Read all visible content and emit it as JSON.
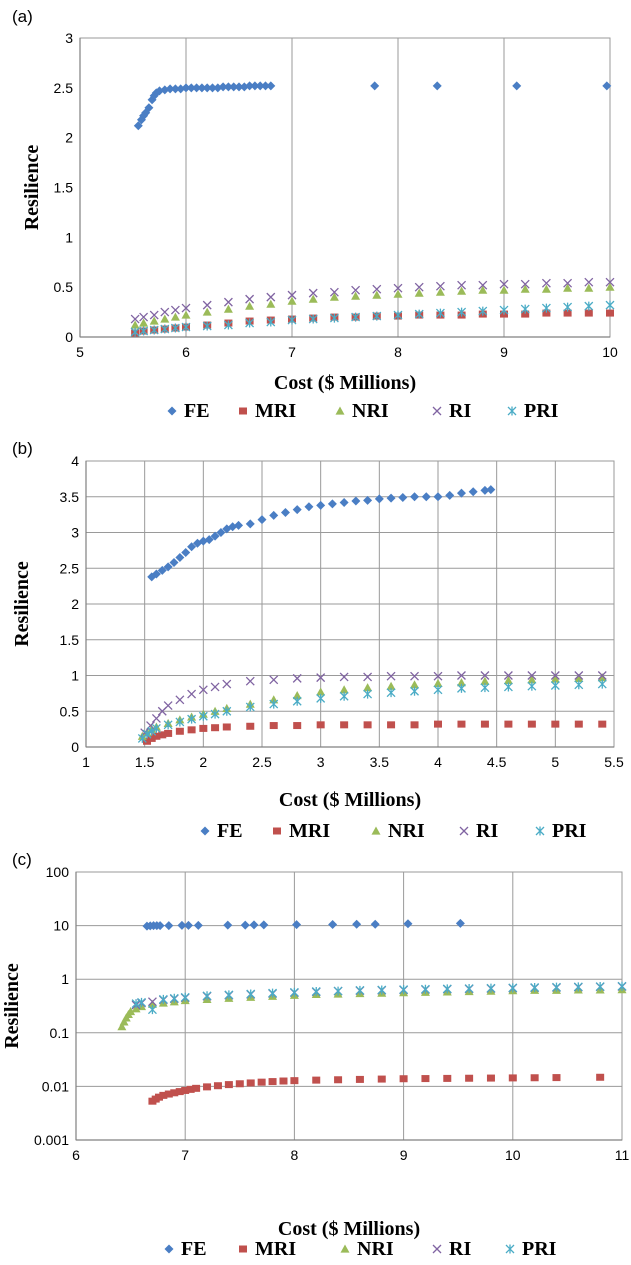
{
  "chart_data": [
    {
      "type": "scatter",
      "panel_label": "(a)",
      "xlabel": "Cost ($ Millions)",
      "ylabel": "Resilience",
      "xlim": [
        5,
        10
      ],
      "ylim": [
        0,
        3
      ],
      "xticks": [
        "5",
        "6",
        "7",
        "8",
        "9",
        "10"
      ],
      "yticks": [
        "0",
        "0.5",
        "1",
        "1.5",
        "2",
        "2.5",
        "3"
      ],
      "grid": "vertical",
      "legend_position": "bottom",
      "series": [
        {
          "name": "FE",
          "color": "#4A7EC4",
          "marker": "diamond",
          "x": [
            5.55,
            5.58,
            5.6,
            5.62,
            5.65,
            5.68,
            5.7,
            5.72,
            5.75,
            5.8,
            5.85,
            5.9,
            5.95,
            6.0,
            6.05,
            6.1,
            6.15,
            6.2,
            6.25,
            6.3,
            6.35,
            6.4,
            6.45,
            6.5,
            6.55,
            6.6,
            6.65,
            6.7,
            6.75,
            6.8,
            7.78,
            8.37,
            9.12,
            9.97
          ],
          "y": [
            2.12,
            2.18,
            2.22,
            2.25,
            2.3,
            2.38,
            2.42,
            2.45,
            2.47,
            2.48,
            2.49,
            2.49,
            2.49,
            2.5,
            2.5,
            2.5,
            2.5,
            2.5,
            2.5,
            2.5,
            2.51,
            2.51,
            2.51,
            2.51,
            2.51,
            2.52,
            2.52,
            2.52,
            2.52,
            2.52,
            2.52,
            2.52,
            2.52,
            2.52
          ]
        },
        {
          "name": "MRI",
          "color": "#C0504D",
          "marker": "square",
          "x": [
            5.52,
            5.6,
            5.7,
            5.8,
            5.9,
            6.0,
            6.2,
            6.4,
            6.6,
            6.8,
            7.0,
            7.2,
            7.4,
            7.6,
            7.8,
            8.0,
            8.2,
            8.4,
            8.6,
            8.8,
            9.0,
            9.2,
            9.4,
            9.6,
            9.8,
            10.0
          ],
          "y": [
            0.04,
            0.06,
            0.07,
            0.08,
            0.09,
            0.1,
            0.12,
            0.14,
            0.16,
            0.17,
            0.18,
            0.19,
            0.2,
            0.2,
            0.21,
            0.21,
            0.22,
            0.22,
            0.22,
            0.23,
            0.23,
            0.23,
            0.24,
            0.24,
            0.24,
            0.24
          ]
        },
        {
          "name": "NRI",
          "color": "#9BBB59",
          "marker": "triangle",
          "x": [
            5.52,
            5.6,
            5.7,
            5.8,
            5.9,
            6.0,
            6.2,
            6.4,
            6.6,
            6.8,
            7.0,
            7.2,
            7.4,
            7.6,
            7.8,
            8.0,
            8.2,
            8.4,
            8.6,
            8.8,
            9.0,
            9.2,
            9.4,
            9.6,
            9.8,
            10.0
          ],
          "y": [
            0.12,
            0.14,
            0.16,
            0.18,
            0.2,
            0.22,
            0.25,
            0.28,
            0.31,
            0.33,
            0.36,
            0.38,
            0.4,
            0.41,
            0.42,
            0.43,
            0.44,
            0.45,
            0.46,
            0.47,
            0.47,
            0.48,
            0.48,
            0.49,
            0.49,
            0.5
          ]
        },
        {
          "name": "RI",
          "color": "#8064A2",
          "marker": "x",
          "x": [
            5.52,
            5.6,
            5.7,
            5.8,
            5.9,
            6.0,
            6.2,
            6.4,
            6.6,
            6.8,
            7.0,
            7.2,
            7.4,
            7.6,
            7.8,
            8.0,
            8.2,
            8.4,
            8.6,
            8.8,
            9.0,
            9.2,
            9.4,
            9.6,
            9.8,
            10.0
          ],
          "y": [
            0.18,
            0.2,
            0.22,
            0.25,
            0.27,
            0.29,
            0.32,
            0.35,
            0.38,
            0.4,
            0.42,
            0.44,
            0.45,
            0.47,
            0.48,
            0.49,
            0.5,
            0.51,
            0.52,
            0.52,
            0.53,
            0.53,
            0.54,
            0.54,
            0.55,
            0.55
          ]
        },
        {
          "name": "PRI",
          "color": "#4BACC6",
          "marker": "asterisk",
          "x": [
            5.52,
            5.6,
            5.7,
            5.8,
            5.9,
            6.0,
            6.2,
            6.4,
            6.6,
            6.8,
            7.0,
            7.2,
            7.4,
            7.6,
            7.8,
            8.0,
            8.2,
            8.4,
            8.6,
            8.8,
            9.0,
            9.2,
            9.4,
            9.6,
            9.8,
            10.0
          ],
          "y": [
            0.05,
            0.06,
            0.07,
            0.08,
            0.09,
            0.1,
            0.11,
            0.12,
            0.14,
            0.15,
            0.17,
            0.18,
            0.19,
            0.2,
            0.21,
            0.22,
            0.23,
            0.24,
            0.25,
            0.26,
            0.27,
            0.28,
            0.29,
            0.3,
            0.31,
            0.32
          ]
        }
      ]
    },
    {
      "type": "scatter",
      "panel_label": "(b)",
      "xlabel": "Cost ($ Millions)",
      "ylabel": "Resilience",
      "xlim": [
        1,
        5.5
      ],
      "ylim": [
        0,
        4
      ],
      "xticks": [
        "1",
        "1.5",
        "2",
        "2.5",
        "3",
        "3.5",
        "4",
        "4.5",
        "5",
        "5.5"
      ],
      "yticks": [
        "0",
        "0.5",
        "1",
        "1.5",
        "2",
        "2.5",
        "3",
        "3.5",
        "4"
      ],
      "grid": "both",
      "legend_position": "bottom",
      "series": [
        {
          "name": "FE",
          "color": "#4A7EC4",
          "marker": "diamond",
          "x": [
            1.56,
            1.6,
            1.65,
            1.7,
            1.75,
            1.8,
            1.85,
            1.9,
            1.95,
            2.0,
            2.05,
            2.1,
            2.15,
            2.2,
            2.25,
            2.3,
            2.4,
            2.5,
            2.6,
            2.7,
            2.8,
            2.9,
            3.0,
            3.1,
            3.2,
            3.3,
            3.4,
            3.5,
            3.6,
            3.7,
            3.8,
            3.9,
            4.0,
            4.1,
            4.2,
            4.3,
            4.4,
            4.45
          ],
          "y": [
            2.38,
            2.42,
            2.47,
            2.52,
            2.58,
            2.65,
            2.72,
            2.8,
            2.85,
            2.88,
            2.9,
            2.95,
            3.0,
            3.05,
            3.08,
            3.1,
            3.12,
            3.18,
            3.24,
            3.28,
            3.32,
            3.36,
            3.38,
            3.4,
            3.42,
            3.44,
            3.45,
            3.47,
            3.48,
            3.49,
            3.5,
            3.5,
            3.5,
            3.52,
            3.55,
            3.57,
            3.59,
            3.6
          ]
        },
        {
          "name": "MRI",
          "color": "#C0504D",
          "marker": "square",
          "x": [
            1.52,
            1.56,
            1.6,
            1.65,
            1.7,
            1.8,
            1.9,
            2.0,
            2.1,
            2.2,
            2.4,
            2.6,
            2.8,
            3.0,
            3.2,
            3.4,
            3.6,
            3.8,
            4.0,
            4.2,
            4.4,
            4.6,
            4.8,
            5.0,
            5.2,
            5.4
          ],
          "y": [
            0.08,
            0.12,
            0.15,
            0.17,
            0.19,
            0.22,
            0.24,
            0.26,
            0.27,
            0.28,
            0.29,
            0.3,
            0.3,
            0.31,
            0.31,
            0.31,
            0.31,
            0.31,
            0.32,
            0.32,
            0.32,
            0.32,
            0.32,
            0.32,
            0.32,
            0.32
          ]
        },
        {
          "name": "NRI",
          "color": "#9BBB59",
          "marker": "triangle",
          "x": [
            1.48,
            1.52,
            1.56,
            1.6,
            1.7,
            1.8,
            1.9,
            2.0,
            2.1,
            2.2,
            2.4,
            2.6,
            2.8,
            3.0,
            3.2,
            3.4,
            3.6,
            3.8,
            4.0,
            4.2,
            4.4,
            4.6,
            4.8,
            5.0,
            5.2,
            5.4
          ],
          "y": [
            0.15,
            0.2,
            0.25,
            0.28,
            0.33,
            0.38,
            0.42,
            0.46,
            0.5,
            0.54,
            0.6,
            0.66,
            0.72,
            0.77,
            0.8,
            0.83,
            0.85,
            0.87,
            0.89,
            0.9,
            0.92,
            0.93,
            0.94,
            0.95,
            0.96,
            0.97
          ]
        },
        {
          "name": "RI",
          "color": "#8064A2",
          "marker": "x",
          "x": [
            1.5,
            1.55,
            1.6,
            1.65,
            1.7,
            1.8,
            1.9,
            2.0,
            2.1,
            2.2,
            2.4,
            2.6,
            2.8,
            3.0,
            3.2,
            3.4,
            3.6,
            3.8,
            4.0,
            4.2,
            4.4,
            4.6,
            4.8,
            5.0,
            5.2,
            5.4
          ],
          "y": [
            0.2,
            0.3,
            0.4,
            0.5,
            0.58,
            0.66,
            0.74,
            0.8,
            0.84,
            0.88,
            0.92,
            0.94,
            0.96,
            0.97,
            0.98,
            0.98,
            0.99,
            0.99,
            0.99,
            1.0,
            1.0,
            1.0,
            1.0,
            1.0,
            1.0,
            1.0
          ]
        },
        {
          "name": "PRI",
          "color": "#4BACC6",
          "marker": "asterisk",
          "x": [
            1.48,
            1.52,
            1.56,
            1.6,
            1.7,
            1.8,
            1.9,
            2.0,
            2.1,
            2.2,
            2.4,
            2.6,
            2.8,
            3.0,
            3.2,
            3.4,
            3.6,
            3.8,
            4.0,
            4.2,
            4.4,
            4.6,
            4.8,
            5.0,
            5.2,
            5.4
          ],
          "y": [
            0.12,
            0.18,
            0.22,
            0.26,
            0.31,
            0.35,
            0.39,
            0.43,
            0.46,
            0.5,
            0.56,
            0.6,
            0.64,
            0.68,
            0.71,
            0.74,
            0.76,
            0.78,
            0.8,
            0.82,
            0.83,
            0.84,
            0.85,
            0.86,
            0.87,
            0.88
          ]
        }
      ]
    },
    {
      "type": "scatter",
      "panel_label": "(c)",
      "xlabel": "Cost ($ Millions)",
      "ylabel": "Resilience",
      "xlim": [
        6,
        11
      ],
      "ylim": [
        0.001,
        100
      ],
      "yscale": "log",
      "xticks": [
        "6",
        "7",
        "8",
        "9",
        "10",
        "11"
      ],
      "yticks": [
        "0.001",
        "0.01",
        "0.1",
        "1",
        "10",
        "100"
      ],
      "grid": "both",
      "legend_position": "bottom",
      "series": [
        {
          "name": "FE",
          "color": "#4A7EC4",
          "marker": "diamond",
          "x": [
            6.65,
            6.68,
            6.71,
            6.74,
            6.77,
            6.85,
            6.97,
            7.03,
            7.12,
            7.39,
            7.55,
            7.63,
            7.72,
            8.02,
            8.35,
            8.57,
            8.74,
            9.04,
            9.52
          ],
          "y": [
            9.8,
            9.9,
            10.0,
            10.0,
            10.0,
            10.0,
            10.1,
            10.1,
            10.1,
            10.2,
            10.2,
            10.3,
            10.3,
            10.4,
            10.5,
            10.6,
            10.6,
            10.8,
            11.0
          ]
        },
        {
          "name": "MRI",
          "color": "#C0504D",
          "marker": "square",
          "x": [
            6.7,
            6.73,
            6.76,
            6.8,
            6.85,
            6.9,
            6.95,
            7.0,
            7.05,
            7.1,
            7.2,
            7.3,
            7.4,
            7.5,
            7.6,
            7.7,
            7.8,
            7.9,
            8.0,
            8.2,
            8.4,
            8.6,
            8.8,
            9.0,
            9.2,
            9.4,
            9.6,
            9.8,
            10.0,
            10.2,
            10.4,
            10.8
          ],
          "y": [
            0.0053,
            0.0058,
            0.0063,
            0.0068,
            0.0072,
            0.0076,
            0.008,
            0.0084,
            0.0088,
            0.0092,
            0.0098,
            0.0103,
            0.0108,
            0.0112,
            0.0116,
            0.012,
            0.0123,
            0.0126,
            0.0128,
            0.0131,
            0.0133,
            0.0135,
            0.0137,
            0.0139,
            0.014,
            0.0141,
            0.0142,
            0.0143,
            0.0144,
            0.0145,
            0.0146,
            0.0148
          ]
        },
        {
          "name": "NRI",
          "color": "#9BBB59",
          "marker": "triangle",
          "x": [
            6.42,
            6.44,
            6.46,
            6.48,
            6.5,
            6.55,
            6.6,
            6.7,
            6.8,
            6.9,
            7.0,
            7.2,
            7.4,
            7.6,
            7.8,
            8.0,
            8.2,
            8.4,
            8.6,
            8.8,
            9.0,
            9.2,
            9.4,
            9.6,
            9.8,
            10.0,
            10.2,
            10.4,
            10.6,
            10.8,
            11.0
          ],
          "y": [
            0.13,
            0.16,
            0.19,
            0.22,
            0.25,
            0.28,
            0.31,
            0.34,
            0.36,
            0.38,
            0.4,
            0.42,
            0.44,
            0.46,
            0.48,
            0.5,
            0.52,
            0.53,
            0.54,
            0.55,
            0.56,
            0.57,
            0.58,
            0.59,
            0.6,
            0.61,
            0.62,
            0.62,
            0.63,
            0.63,
            0.64
          ]
        },
        {
          "name": "RI",
          "color": "#8064A2",
          "marker": "x",
          "x": [
            6.55,
            6.6,
            6.7,
            6.8,
            6.9,
            7.0,
            7.2,
            7.4,
            7.6,
            7.8,
            8.0,
            8.2,
            8.4,
            8.6,
            8.8,
            9.0,
            9.2,
            9.4,
            9.6,
            9.8,
            10.0,
            10.2,
            10.4,
            10.6,
            10.8,
            11.0
          ],
          "y": [
            0.33,
            0.36,
            0.38,
            0.41,
            0.43,
            0.45,
            0.48,
            0.5,
            0.52,
            0.54,
            0.56,
            0.58,
            0.6,
            0.61,
            0.62,
            0.63,
            0.64,
            0.65,
            0.66,
            0.67,
            0.68,
            0.69,
            0.7,
            0.71,
            0.72,
            0.73
          ]
        },
        {
          "name": "PRI",
          "color": "#4BACC6",
          "marker": "asterisk",
          "x": [
            6.55,
            6.6,
            6.7,
            6.8,
            6.9,
            7.0,
            7.2,
            7.4,
            7.6,
            7.8,
            8.0,
            8.2,
            8.4,
            8.6,
            8.8,
            9.0,
            9.2,
            9.4,
            9.6,
            9.8,
            10.0,
            10.2,
            10.4,
            10.6,
            10.8,
            11.0
          ],
          "y": [
            0.35,
            0.37,
            0.27,
            0.42,
            0.44,
            0.46,
            0.49,
            0.51,
            0.53,
            0.55,
            0.57,
            0.59,
            0.6,
            0.62,
            0.63,
            0.64,
            0.65,
            0.66,
            0.67,
            0.68,
            0.69,
            0.7,
            0.71,
            0.72,
            0.73,
            0.74
          ]
        }
      ]
    }
  ]
}
